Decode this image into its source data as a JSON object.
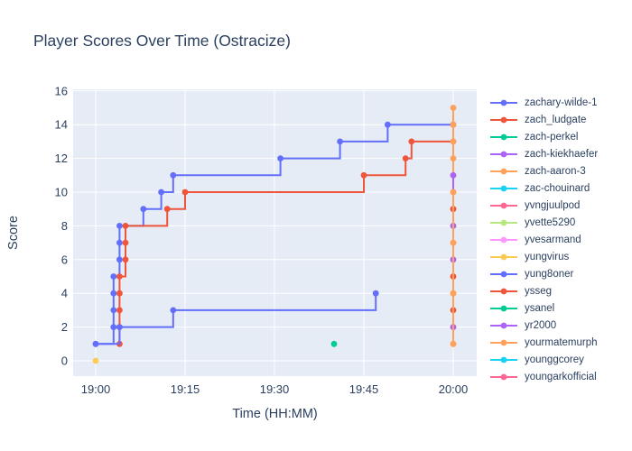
{
  "chart_data": {
    "type": "line",
    "line_shape": "step-after",
    "mode": "lines+markers",
    "title": "Player Scores Over Time (Ostracize)",
    "xlabel": "Time (HH:MM)",
    "ylabel": "Score",
    "x_ticks": [
      "19:00",
      "19:15",
      "19:30",
      "19:45",
      "20:00"
    ],
    "y_ticks": [
      0,
      2,
      4,
      6,
      8,
      10,
      12,
      14,
      16
    ],
    "x_range_minutes_from_1900": [
      -3.8,
      63.9
    ],
    "y_range": [
      -0.9,
      16.1
    ],
    "grid": true,
    "plot_bg_color": "#E5ECF6",
    "grid_color": "#ffffff",
    "text_color": "#2a3f5f",
    "legend_position": "right",
    "series": [
      {
        "name": "zachary-wilde-1",
        "color": "#636EFA",
        "points": [
          [
            "19:00",
            1
          ],
          [
            "19:03",
            2
          ],
          [
            "19:03",
            3
          ],
          [
            "19:03",
            4
          ],
          [
            "19:03",
            5
          ],
          [
            "19:04",
            6
          ],
          [
            "19:04",
            7
          ],
          [
            "19:04",
            8
          ],
          [
            "19:08",
            9
          ],
          [
            "19:11",
            10
          ],
          [
            "19:13",
            11
          ],
          [
            "19:31",
            12
          ],
          [
            "19:41",
            13
          ],
          [
            "19:49",
            14
          ],
          [
            "20:00",
            14
          ]
        ]
      },
      {
        "name": "zach_ludgate",
        "color": "#EF553B",
        "points": [
          [
            "19:04",
            1
          ],
          [
            "19:04",
            2
          ],
          [
            "19:04",
            3
          ],
          [
            "19:04",
            4
          ],
          [
            "19:04",
            5
          ],
          [
            "19:05",
            6
          ],
          [
            "19:05",
            7
          ],
          [
            "19:05",
            8
          ],
          [
            "19:12",
            9
          ],
          [
            "19:15",
            10
          ],
          [
            "19:45",
            11
          ],
          [
            "19:52",
            12
          ],
          [
            "19:53",
            13
          ],
          [
            "20:00",
            13
          ]
        ]
      },
      {
        "name": "zach-perkel",
        "color": "#00CC96",
        "points": [
          [
            "19:40",
            1
          ]
        ]
      },
      {
        "name": "zach-kiekhaefer",
        "color": "#AB63FA",
        "points": []
      },
      {
        "name": "zach-aaron-3",
        "color": "#FFA15A",
        "points": [
          [
            "20:00",
            1
          ],
          [
            "20:00",
            2
          ],
          [
            "20:00",
            3
          ],
          [
            "20:00",
            4
          ],
          [
            "20:00",
            5
          ],
          [
            "20:00",
            6
          ],
          [
            "20:00",
            7
          ],
          [
            "20:00",
            8
          ],
          [
            "20:00",
            9
          ],
          [
            "20:00",
            10
          ],
          [
            "20:00",
            11
          ],
          [
            "20:00",
            12
          ],
          [
            "20:00",
            13
          ],
          [
            "20:00",
            14
          ],
          [
            "20:00",
            15
          ]
        ]
      },
      {
        "name": "zac-chouinard",
        "color": "#19D3F3",
        "points": []
      },
      {
        "name": "yvngjuulpod",
        "color": "#FF6692",
        "points": []
      },
      {
        "name": "yvette5290",
        "color": "#B6E880",
        "points": []
      },
      {
        "name": "yvesarmand",
        "color": "#FF97FF",
        "points": []
      },
      {
        "name": "yungvirus",
        "color": "#FECB52",
        "points": [
          [
            "19:00",
            0
          ]
        ]
      },
      {
        "name": "yung8oner",
        "color": "#636EFA",
        "points": [
          [
            "19:00",
            1
          ],
          [
            "19:04",
            2
          ],
          [
            "19:13",
            3
          ],
          [
            "19:47",
            4
          ]
        ]
      },
      {
        "name": "ysseg",
        "color": "#EF553B",
        "points": [
          [
            "20:00",
            3
          ],
          [
            "20:00",
            5
          ],
          [
            "20:00",
            9
          ]
        ]
      },
      {
        "name": "ysanel",
        "color": "#00CC96",
        "points": []
      },
      {
        "name": "yr2000",
        "color": "#AB63FA",
        "points": [
          [
            "20:00",
            2
          ],
          [
            "20:00",
            6
          ],
          [
            "20:00",
            8
          ],
          [
            "20:00",
            11
          ]
        ]
      },
      {
        "name": "yourmatemurph",
        "color": "#FFA15A",
        "points": [
          [
            "20:00",
            1
          ],
          [
            "20:00",
            4
          ],
          [
            "20:00",
            7
          ],
          [
            "20:00",
            10
          ]
        ]
      },
      {
        "name": "younggcorey",
        "color": "#19D3F3",
        "points": []
      },
      {
        "name": "youngarkofficial",
        "color": "#FF6692",
        "points": []
      }
    ]
  }
}
